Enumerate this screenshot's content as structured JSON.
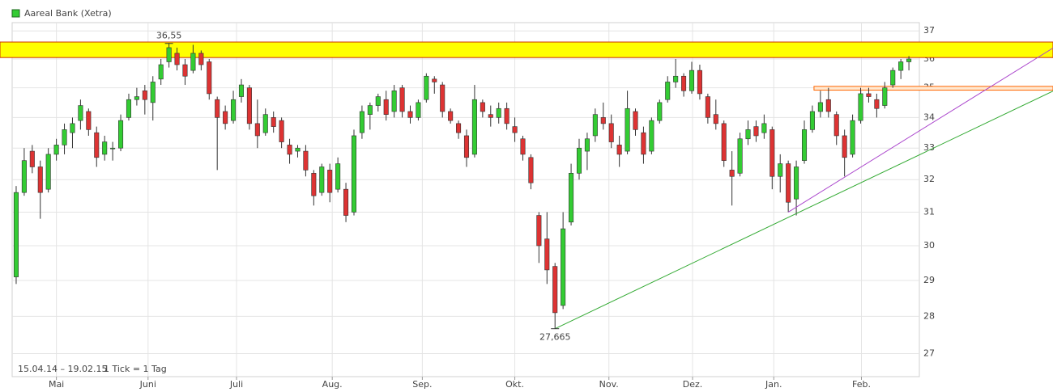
{
  "chart_data": {
    "type": "candlestick",
    "title": "Aareal Bank (Xetra)",
    "date_range": "15.04.14 – 19.02.15",
    "resolution": "1 Tick = 1 Tag",
    "up_color": "#33cc33",
    "down_color": "#dd3333",
    "log_y": true,
    "grid": true,
    "xlim": [
      -0.5,
      112.3
    ],
    "ylim": [
      26.4,
      37.3
    ],
    "yticks": [
      27,
      28,
      29,
      30,
      31,
      32,
      33,
      34,
      35,
      36,
      37
    ],
    "xticks": [
      {
        "value": 5.0,
        "label": "Mai"
      },
      {
        "value": 16.4,
        "label": "Juni"
      },
      {
        "value": 27.4,
        "label": "Juli"
      },
      {
        "value": 39.3,
        "label": "Aug."
      },
      {
        "value": 50.5,
        "label": "Sep."
      },
      {
        "value": 62.0,
        "label": "Okt."
      },
      {
        "value": 73.7,
        "label": "Nov."
      },
      {
        "value": 84.1,
        "label": "Dez."
      },
      {
        "value": 94.2,
        "label": "Jan."
      },
      {
        "value": 105.1,
        "label": "Feb."
      }
    ],
    "open": [
      29.1,
      31.6,
      32.9,
      32.4,
      31.7,
      32.8,
      33.1,
      33.5,
      33.9,
      34.2,
      33.5,
      32.8,
      33.0,
      33.0,
      34.0,
      34.6,
      34.9,
      34.5,
      35.3,
      35.9,
      36.2,
      35.8,
      35.6,
      36.2,
      35.9,
      34.6,
      34.2,
      33.9,
      34.7,
      35.0,
      33.8,
      33.5,
      34.0,
      33.9,
      33.1,
      32.9,
      32.9,
      32.2,
      31.6,
      32.3,
      31.7,
      31.7,
      31.0,
      33.5,
      34.1,
      34.4,
      34.6,
      34.2,
      35.0,
      34.2,
      34.0,
      34.6,
      35.3,
      35.1,
      34.2,
      33.8,
      33.4,
      32.8,
      34.5,
      34.1,
      34.0,
      34.3,
      33.7,
      33.3,
      32.7,
      30.9,
      30.2,
      29.4,
      28.3,
      30.7,
      32.2,
      32.9,
      33.4,
      34.0,
      33.8,
      33.1,
      32.9,
      34.2,
      33.5,
      32.9,
      33.9,
      34.6,
      35.2,
      35.4,
      34.9,
      35.6,
      34.7,
      34.1,
      33.8,
      32.3,
      32.2,
      33.3,
      33.7,
      33.5,
      33.6,
      32.1,
      32.5,
      31.4,
      32.6,
      33.6,
      34.2,
      34.6,
      34.1,
      33.4,
      32.8,
      33.9,
      34.8,
      34.6,
      34.4,
      35.1,
      35.6,
      35.9
    ],
    "high": [
      31.8,
      33.0,
      33.1,
      32.6,
      33.0,
      33.3,
      33.8,
      34.0,
      34.6,
      34.3,
      33.7,
      33.4,
      33.2,
      34.1,
      34.8,
      35.0,
      35.1,
      35.4,
      36.0,
      36.55,
      36.4,
      36.0,
      36.5,
      36.3,
      36.0,
      34.7,
      34.4,
      34.9,
      35.3,
      35.1,
      34.6,
      34.3,
      34.2,
      34.0,
      33.3,
      33.1,
      33.1,
      32.3,
      32.5,
      32.5,
      32.7,
      31.9,
      33.6,
      34.4,
      34.5,
      34.8,
      34.9,
      35.1,
      35.1,
      34.4,
      34.6,
      35.5,
      35.4,
      35.2,
      34.3,
      33.9,
      33.6,
      35.1,
      34.6,
      34.4,
      34.5,
      34.5,
      34.0,
      33.4,
      32.8,
      31.0,
      31.0,
      29.5,
      31.0,
      32.5,
      33.3,
      33.5,
      34.3,
      34.5,
      34.1,
      33.4,
      34.9,
      34.3,
      33.7,
      34.0,
      34.6,
      35.4,
      36.0,
      35.5,
      35.9,
      35.8,
      34.8,
      34.6,
      33.9,
      32.9,
      33.5,
      33.9,
      33.9,
      34.1,
      33.7,
      32.8,
      32.6,
      32.6,
      33.9,
      34.4,
      34.9,
      35.0,
      34.2,
      33.6,
      34.1,
      35.0,
      35.0,
      34.8,
      35.2,
      35.7,
      36.0,
      36.1
    ],
    "low": [
      28.9,
      31.5,
      32.2,
      30.8,
      31.6,
      32.6,
      32.8,
      33.0,
      33.6,
      33.4,
      32.4,
      32.6,
      32.6,
      32.9,
      33.9,
      34.4,
      34.1,
      33.9,
      35.1,
      35.7,
      35.6,
      35.1,
      35.5,
      35.6,
      34.6,
      32.3,
      33.6,
      33.8,
      34.5,
      33.6,
      33.0,
      33.4,
      33.5,
      33.0,
      32.5,
      32.7,
      32.1,
      31.2,
      31.5,
      31.3,
      31.6,
      30.7,
      30.9,
      33.3,
      33.6,
      34.2,
      33.9,
      34.0,
      34.0,
      33.8,
      33.9,
      34.5,
      34.8,
      34.0,
      33.8,
      33.3,
      32.4,
      32.7,
      34.0,
      33.7,
      33.8,
      33.6,
      33.2,
      32.6,
      31.7,
      29.5,
      28.9,
      27.665,
      28.2,
      30.6,
      32.0,
      32.3,
      33.2,
      33.6,
      33.0,
      32.4,
      32.8,
      33.4,
      32.5,
      32.8,
      33.8,
      34.5,
      35.0,
      34.7,
      34.8,
      34.6,
      33.8,
      33.6,
      32.4,
      31.2,
      32.1,
      33.1,
      33.2,
      33.3,
      31.7,
      31.6,
      31.0,
      30.9,
      32.5,
      33.5,
      34.0,
      34.0,
      33.1,
      32.1,
      32.7,
      33.8,
      34.5,
      34.0,
      34.3,
      35.0,
      35.3,
      35.6
    ],
    "close": [
      31.6,
      32.6,
      32.4,
      31.6,
      32.8,
      33.1,
      33.6,
      33.8,
      34.4,
      33.6,
      32.7,
      33.2,
      33.0,
      33.9,
      34.6,
      34.7,
      34.6,
      35.2,
      35.8,
      36.4,
      35.8,
      35.4,
      36.2,
      35.8,
      34.8,
      34.0,
      33.8,
      34.6,
      35.1,
      33.8,
      33.4,
      34.1,
      33.7,
      33.2,
      32.8,
      33.0,
      32.3,
      31.5,
      32.4,
      31.6,
      32.5,
      30.9,
      33.4,
      34.2,
      34.4,
      34.7,
      34.1,
      34.9,
      34.2,
      34.0,
      34.5,
      35.4,
      35.2,
      34.2,
      33.9,
      33.5,
      32.7,
      34.6,
      34.2,
      34.0,
      34.3,
      33.8,
      33.5,
      32.8,
      31.9,
      30.0,
      29.3,
      28.1,
      30.5,
      32.2,
      33.0,
      33.3,
      34.1,
      33.8,
      33.2,
      32.8,
      34.3,
      33.6,
      32.8,
      33.9,
      34.5,
      35.2,
      35.4,
      34.9,
      35.6,
      34.8,
      34.0,
      33.8,
      32.6,
      32.1,
      33.3,
      33.6,
      33.4,
      33.8,
      32.1,
      32.5,
      31.3,
      32.4,
      33.6,
      34.2,
      34.5,
      34.2,
      33.4,
      32.7,
      33.9,
      34.8,
      34.7,
      34.3,
      35.0,
      35.6,
      35.9,
      36.0
    ],
    "zones": [
      {
        "from": 36.05,
        "to": 36.6,
        "color": "#ffff00",
        "border": "#cc3300"
      },
      {
        "from": 34.92,
        "to": 35.05,
        "start": 99.2,
        "color": "#ffe8d0",
        "border": "#ff6600"
      }
    ],
    "trendlines": [
      {
        "x": [
          67,
          129
        ],
        "values": [
          27.665,
          34.9
        ],
        "color": "#33aa33"
      },
      {
        "x": [
          96,
          129
        ],
        "values": [
          31.0,
          36.4
        ],
        "color": "#aa44cc"
      }
    ],
    "annotations": [
      {
        "label": "36,55",
        "value": 36.55,
        "x": 19,
        "position": "above"
      },
      {
        "label": "27,665",
        "value": 27.665,
        "x": 67,
        "position": "below"
      }
    ]
  }
}
